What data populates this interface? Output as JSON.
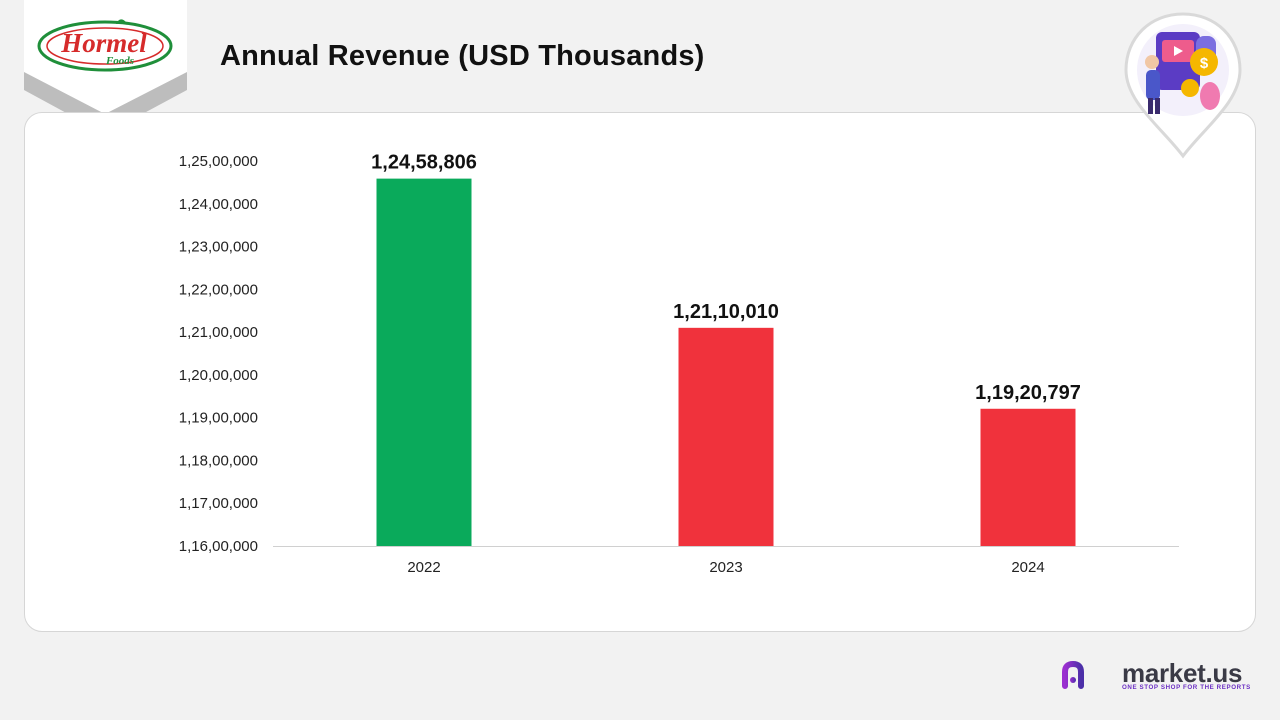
{
  "logo": {
    "brand_word": "Hormel",
    "sub_word": "Foods"
  },
  "header": {
    "title": "Annual Revenue (USD Thousands)"
  },
  "colors": {
    "increase": "#0aaa5b",
    "decrease": "#f0323c",
    "brand_purple": "#6b2fc4"
  },
  "footer": {
    "brand_name": "market.us",
    "tagline": "ONE STOP SHOP FOR THE REPORTS"
  },
  "chart_data": {
    "type": "bar",
    "title": "Annual Revenue (USD Thousands)",
    "xlabel": "",
    "ylabel": "",
    "categories": [
      "2022",
      "2023",
      "2024"
    ],
    "values": [
      12458806,
      12110010,
      11920797
    ],
    "value_labels": [
      "1,24,58,806",
      "1,21,10,010",
      "1,19,20,797"
    ],
    "bar_colors": [
      "#0aaa5b",
      "#f0323c",
      "#f0323c"
    ],
    "ylim": [
      11600000,
      12500000
    ],
    "yticks": [
      11600000,
      11700000,
      11800000,
      11900000,
      12000000,
      12100000,
      12200000,
      12300000,
      12400000,
      12500000
    ],
    "ytick_labels": [
      "1,16,00,000",
      "1,17,00,000",
      "1,18,00,000",
      "1,19,00,000",
      "1,20,00,000",
      "1,21,00,000",
      "1,22,00,000",
      "1,23,00,000",
      "1,24,00,000",
      "1,25,00,000"
    ],
    "grid": false,
    "legend": "none"
  }
}
